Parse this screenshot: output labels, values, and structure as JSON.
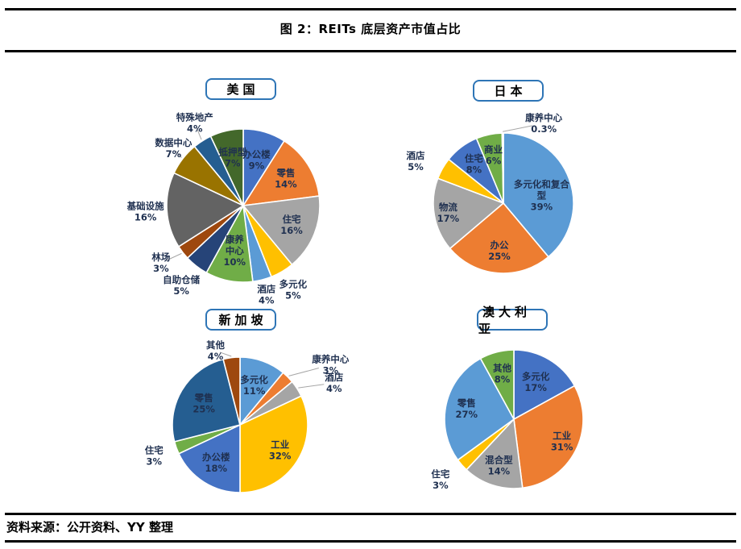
{
  "page": {
    "title": "图 2：REITs 底层资产市值占比",
    "source": "资料来源：公开资料、YY 整理"
  },
  "style": {
    "rule_color": "#000000",
    "box_border_color": "#2E75B6",
    "label_color": "#1F3050",
    "leader_line_color": "#A6A6A6",
    "background": "#FFFFFF"
  },
  "chart_data": [
    {
      "type": "pie",
      "title": "美国",
      "unit": "%",
      "start_angle_deg": 0,
      "direction": "clockwise",
      "slices": [
        {
          "name": "办公楼",
          "value": 9,
          "pct": "9%",
          "color": "#4472C4",
          "label_lines": [
            "办公楼",
            "9%"
          ],
          "placement": "inside"
        },
        {
          "name": "零售",
          "value": 14,
          "pct": "14%",
          "color": "#ED7D31",
          "label_lines": [
            "零售",
            "14%"
          ],
          "placement": "inside"
        },
        {
          "name": "住宅",
          "value": 16,
          "pct": "16%",
          "color": "#A5A5A5",
          "label_lines": [
            "住宅",
            "16%"
          ],
          "placement": "inside"
        },
        {
          "name": "多元化",
          "value": 5,
          "pct": "5%",
          "color": "#FFC000",
          "label_lines": [
            "多元化",
            "5%"
          ],
          "placement": "outside"
        },
        {
          "name": "酒店",
          "value": 4,
          "pct": "4%",
          "color": "#5B9BD5",
          "label_lines": [
            "酒店",
            "4%"
          ],
          "placement": "outside"
        },
        {
          "name": "康养中心",
          "value": 10,
          "pct": "10%",
          "color": "#70AD47",
          "label_lines": [
            "康养",
            "中心",
            "10%"
          ],
          "placement": "inside"
        },
        {
          "name": "自助仓储",
          "value": 5,
          "pct": "5%",
          "color": "#264478",
          "label_lines": [
            "自助仓储",
            "5%"
          ],
          "placement": "outside"
        },
        {
          "name": "林场",
          "value": 3,
          "pct": "3%",
          "color": "#9E480E",
          "label_lines": [
            "林场",
            "3%"
          ],
          "placement": "outside",
          "leader": true
        },
        {
          "name": "基础设施",
          "value": 16,
          "pct": "16%",
          "color": "#636363",
          "label_lines": [
            "基础设施",
            "16%"
          ],
          "placement": "outside"
        },
        {
          "name": "数据中心",
          "value": 7,
          "pct": "7%",
          "color": "#997300",
          "label_lines": [
            "数据中心",
            "7%"
          ],
          "placement": "outside",
          "leader": true
        },
        {
          "name": "特殊地产",
          "value": 4,
          "pct": "4%",
          "color": "#255E91",
          "label_lines": [
            "特殊地产",
            "4%"
          ],
          "placement": "outside",
          "leader": true
        },
        {
          "name": "抵押型",
          "value": 7,
          "pct": "7%",
          "color": "#43682B",
          "label_lines": [
            "抵押型",
            "7%"
          ],
          "placement": "inside"
        }
      ]
    },
    {
      "type": "pie",
      "title": "日本",
      "unit": "%",
      "start_angle_deg": 0,
      "direction": "clockwise",
      "slices": [
        {
          "name": "多元化和复合型",
          "value": 39,
          "pct": "39%",
          "color": "#5B9BD5",
          "label_lines": [
            "多元化和复合",
            "型",
            "39%"
          ],
          "placement": "inside"
        },
        {
          "name": "办公",
          "value": 25,
          "pct": "25%",
          "color": "#ED7D31",
          "label_lines": [
            "办公",
            "25%"
          ],
          "placement": "inside"
        },
        {
          "name": "物流",
          "value": 17,
          "pct": "17%",
          "color": "#A5A5A5",
          "label_lines": [
            "物流",
            "17%"
          ],
          "placement": "inside"
        },
        {
          "name": "酒店",
          "value": 5,
          "pct": "5%",
          "color": "#FFC000",
          "label_lines": [
            "酒店",
            "5%"
          ],
          "placement": "outside"
        },
        {
          "name": "住宅",
          "value": 8,
          "pct": "8%",
          "color": "#4472C4",
          "label_lines": [
            "住宅",
            "8%"
          ],
          "placement": "inside"
        },
        {
          "name": "商业",
          "value": 6,
          "pct": "6%",
          "color": "#70AD47",
          "label_lines": [
            "商业",
            "6%"
          ],
          "placement": "inside"
        },
        {
          "name": "康养中心",
          "value": 0.3,
          "pct": "0.3%",
          "color": "#264478",
          "label_lines": [
            "康养中心",
            "0.3%"
          ],
          "placement": "outside",
          "leader": true
        }
      ]
    },
    {
      "type": "pie",
      "title": "新加坡",
      "unit": "%",
      "start_angle_deg": 0,
      "direction": "clockwise",
      "slices": [
        {
          "name": "多元化",
          "value": 11,
          "pct": "11%",
          "color": "#5B9BD5",
          "label_lines": [
            "多元化",
            "11%"
          ],
          "placement": "inside"
        },
        {
          "name": "康养中心",
          "value": 3,
          "pct": "3%",
          "color": "#ED7D31",
          "label_lines": [
            "康养中心",
            "3%"
          ],
          "placement": "outside",
          "leader": true
        },
        {
          "name": "酒店",
          "value": 4,
          "pct": "4%",
          "color": "#A5A5A5",
          "label_lines": [
            "酒店",
            "4%"
          ],
          "placement": "outside",
          "leader": true
        },
        {
          "name": "工业",
          "value": 32,
          "pct": "32%",
          "color": "#FFC000",
          "label_lines": [
            "工业",
            "32%"
          ],
          "placement": "inside"
        },
        {
          "name": "办公楼",
          "value": 18,
          "pct": "18%",
          "color": "#4472C4",
          "label_lines": [
            "办公楼",
            "18%"
          ],
          "placement": "inside"
        },
        {
          "name": "住宅",
          "value": 3,
          "pct": "3%",
          "color": "#70AD47",
          "label_lines": [
            "住宅",
            "3%"
          ],
          "placement": "outside"
        },
        {
          "name": "零售",
          "value": 25,
          "pct": "25%",
          "color": "#255E91",
          "label_lines": [
            "零售",
            "25%"
          ],
          "placement": "inside"
        },
        {
          "name": "其他",
          "value": 4,
          "pct": "4%",
          "color": "#9E480E",
          "label_lines": [
            "其他",
            "4%"
          ],
          "placement": "outside",
          "leader": true
        }
      ]
    },
    {
      "type": "pie",
      "title": "澳大利亚",
      "unit": "%",
      "start_angle_deg": 0,
      "direction": "clockwise",
      "slices": [
        {
          "name": "多元化",
          "value": 17,
          "pct": "17%",
          "color": "#4472C4",
          "label_lines": [
            "多元化",
            "17%"
          ],
          "placement": "inside"
        },
        {
          "name": "工业",
          "value": 31,
          "pct": "31%",
          "color": "#ED7D31",
          "label_lines": [
            "工业",
            "31%"
          ],
          "placement": "inside"
        },
        {
          "name": "混合型",
          "value": 14,
          "pct": "14%",
          "color": "#A5A5A5",
          "label_lines": [
            "混合型",
            "14%"
          ],
          "placement": "inside"
        },
        {
          "name": "住宅",
          "value": 3,
          "pct": "3%",
          "color": "#FFC000",
          "label_lines": [
            "住宅",
            "3%"
          ],
          "placement": "outside"
        },
        {
          "name": "零售",
          "value": 27,
          "pct": "27%",
          "color": "#5B9BD5",
          "label_lines": [
            "零售",
            "27%"
          ],
          "placement": "inside"
        },
        {
          "name": "其他",
          "value": 8,
          "pct": "8%",
          "color": "#70AD47",
          "label_lines": [
            "其他",
            "8%"
          ],
          "placement": "inside"
        }
      ]
    }
  ]
}
